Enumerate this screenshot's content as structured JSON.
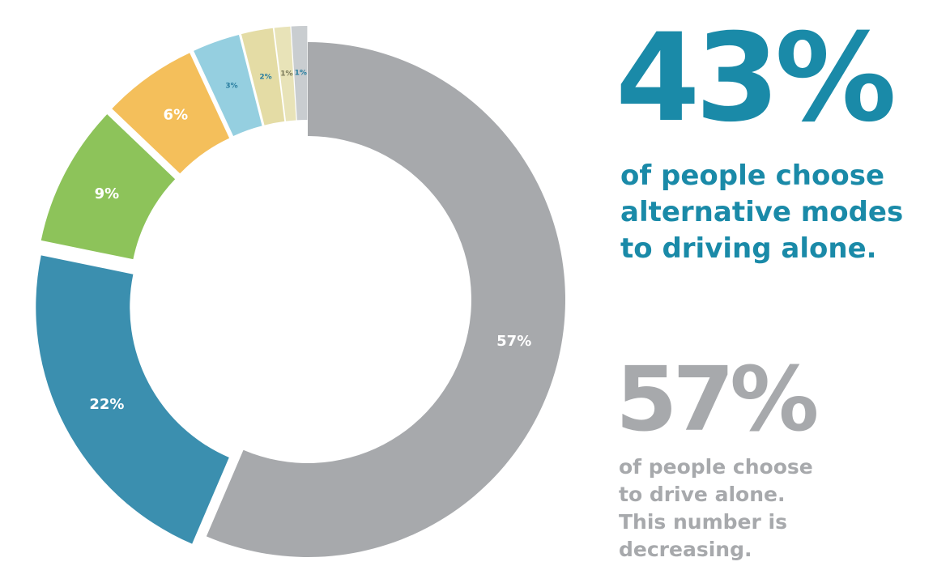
{
  "chart_data": {
    "type": "pie",
    "slices": [
      {
        "label": "57%",
        "value": 57,
        "color": "#a7a9ac"
      },
      {
        "label": "22%",
        "value": 22,
        "color": "#3b8faf"
      },
      {
        "label": "9%",
        "value": 9,
        "color": "#8dc35a"
      },
      {
        "label": "6%",
        "value": 6,
        "color": "#f4bf5b"
      },
      {
        "label": "3%",
        "value": 3,
        "color": "#95cfe0"
      },
      {
        "label": "2%",
        "value": 2,
        "color": "#e4dca5"
      },
      {
        "label": "1%",
        "value": 1,
        "color": "#e8e3b8"
      },
      {
        "label": "1%",
        "value": 1,
        "color": "#c9cdd0"
      }
    ],
    "style": "donut"
  },
  "stats": {
    "alternative": {
      "value": "43%",
      "text": "of people choose\nalternative modes\nto driving alone.",
      "color": "#1a8aa8"
    },
    "drive_alone": {
      "value": "57%",
      "text": "of people choose\nto drive alone.\nThis number is\ndecreasing.",
      "color": "#a7a9ac"
    }
  }
}
